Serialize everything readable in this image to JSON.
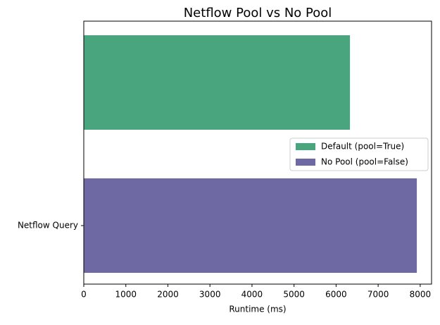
{
  "chart_data": {
    "type": "barh",
    "title": "Netflow Pool vs No Pool",
    "xlabel": "Runtime (ms)",
    "categories": [
      "Netflow Query"
    ],
    "series": [
      {
        "name": "Default (pool=True)",
        "color": "#48a57e",
        "values": [
          6330
        ]
      },
      {
        "name": "No Pool (pool=False)",
        "color": "#6f69a3",
        "values": [
          7920
        ]
      }
    ],
    "xlim": [
      0,
      8270
    ],
    "xticks": [
      0,
      1000,
      2000,
      3000,
      4000,
      5000,
      6000,
      7000,
      8000
    ],
    "legend": "center right"
  }
}
